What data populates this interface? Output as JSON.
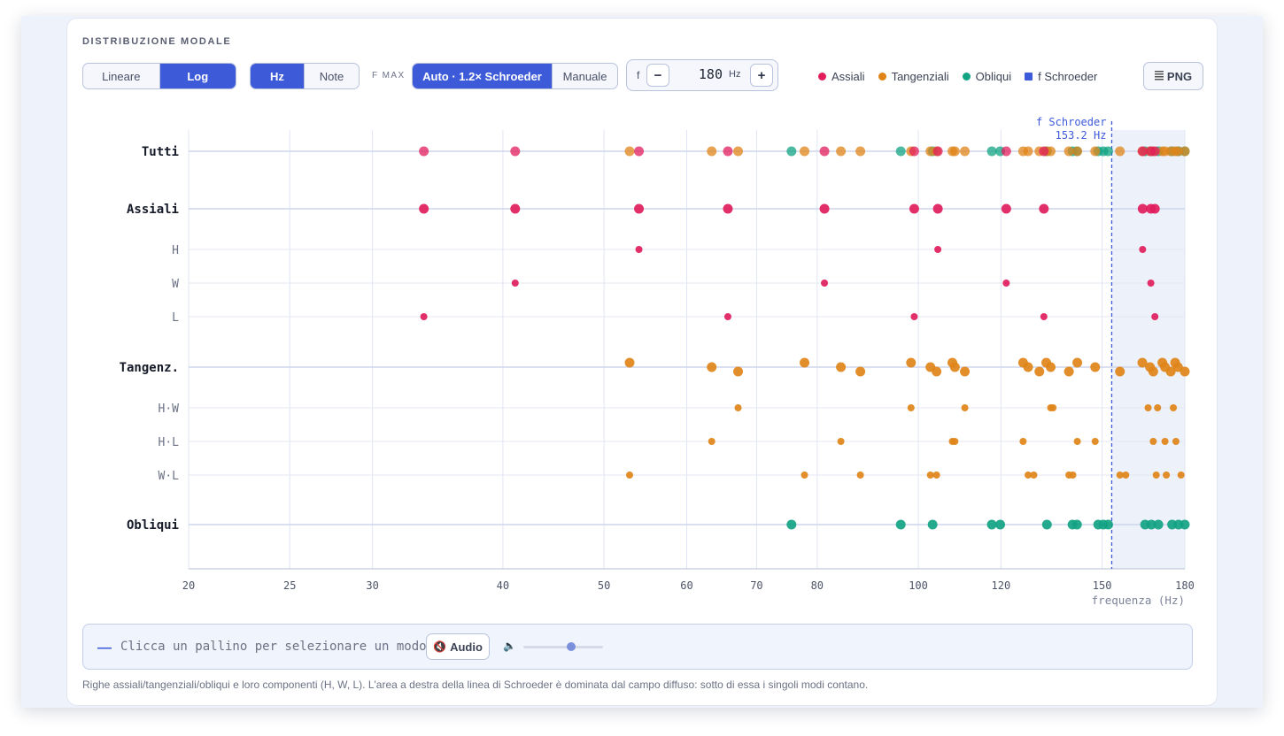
{
  "panel": {
    "title": "DISTRIBUZIONE MODALE"
  },
  "controls": {
    "scale": {
      "options": [
        "Lineare",
        "Log"
      ],
      "selected": "Log"
    },
    "units": {
      "options": [
        "Hz",
        "Note"
      ],
      "selected": "Hz"
    },
    "fmax_label": "F MAX",
    "fmax_mode": {
      "options": [
        "Auto · 1.2× Schroeder",
        "Manuale"
      ],
      "selected": "Auto · 1.2× Schroeder"
    },
    "freq_stepper": {
      "label": "f",
      "minus": "−",
      "value": "180",
      "unit": "Hz",
      "plus": "+"
    },
    "export_label": "PNG"
  },
  "legend": [
    {
      "label": "Assiali",
      "color": "#e11d5c",
      "shape": "dot"
    },
    {
      "label": "Tangenziali",
      "color": "#e08418",
      "shape": "dot"
    },
    {
      "label": "Obliqui",
      "color": "#12a383",
      "shape": "dot"
    },
    {
      "label": "f Schroeder",
      "color": "#3d5bd9",
      "shape": "square"
    }
  ],
  "chart_data": {
    "type": "scatter",
    "x_scale": "log",
    "xlim": [
      20,
      180
    ],
    "x_ticks": [
      20,
      25,
      30,
      40,
      50,
      60,
      70,
      80,
      100,
      120,
      150,
      180
    ],
    "xlabel": "frequenza (Hz)",
    "grid": true,
    "schroeder": {
      "label": "f Schroeder",
      "value_label": "153.2 Hz",
      "freq": 153.2
    },
    "rows": [
      {
        "label": "Tutti",
        "kind": "main",
        "color": "mixed"
      },
      {
        "label": "Assiali",
        "kind": "main",
        "color": "#e11d5c",
        "points": [
          33.6,
          41.1,
          54.0,
          65.7,
          81.3,
          99.1,
          104.4,
          121.4,
          131.9,
          164.0,
          167.0,
          168.5
        ]
      },
      {
        "label": "H",
        "kind": "sub",
        "color": "#e11d5c",
        "points": [
          54.0,
          104.4,
          164.0
        ]
      },
      {
        "label": "W",
        "kind": "sub",
        "color": "#e11d5c",
        "points": [
          41.1,
          81.3,
          121.4,
          167.0
        ]
      },
      {
        "label": "L",
        "kind": "sub",
        "color": "#e11d5c",
        "points": [
          33.6,
          65.7,
          99.1,
          131.9,
          168.5
        ]
      },
      {
        "label": "Tangenz.",
        "kind": "main",
        "color": "#e08418",
        "points": [
          52.9,
          63.4,
          67.2,
          77.8,
          84.3,
          88.0,
          98.4,
          102.7,
          104.1,
          107.8,
          108.4,
          110.8,
          126.0,
          127.4,
          130.6,
          132.6,
          133.9,
          139.4,
          142.0,
          147.7,
          156.0,
          163.9,
          166.7,
          167.9,
          171.3,
          172.3,
          174.5,
          176.2,
          177.3,
          180.0
        ]
      },
      {
        "label": "H·W",
        "kind": "sub",
        "color": "#e08418",
        "points": [
          67.2,
          98.4,
          110.8,
          133.9,
          134.6,
          166.0,
          169.5,
          175.5
        ]
      },
      {
        "label": "H·L",
        "kind": "sub",
        "color": "#e08418",
        "points": [
          63.4,
          84.3,
          107.8,
          108.4,
          126.0,
          142.0,
          147.7,
          167.9,
          172.3,
          176.5
        ]
      },
      {
        "label": "W·L",
        "kind": "sub",
        "color": "#e08418",
        "points": [
          52.9,
          77.8,
          88.0,
          102.7,
          104.1,
          127.4,
          129.0,
          139.4,
          140.6,
          156.0,
          158.0,
          169.0,
          172.8,
          178.5
        ]
      },
      {
        "label": "Obliqui",
        "kind": "main",
        "color": "#12a383",
        "points": [
          75.6,
          96.2,
          103.2,
          117.6,
          119.8,
          132.8,
          140.5,
          141.9,
          148.7,
          150.4,
          152.0,
          164.9,
          167.2,
          169.8,
          175.0,
          177.5,
          180.0
        ]
      }
    ]
  },
  "footer": {
    "dash": "—",
    "hint": "Clicca un pallino per selezionare un modo",
    "audio_label": "Audio",
    "mute_icon": "🔇",
    "volume_icon": "🔈",
    "volume": 0.6
  },
  "caption": "Righe assiali/tangenziali/obliqui e loro componenti (H, W, L). L'area a destra della linea di Schroeder è dominata dal campo diffuso: sotto di essa i singoli modi contano."
}
